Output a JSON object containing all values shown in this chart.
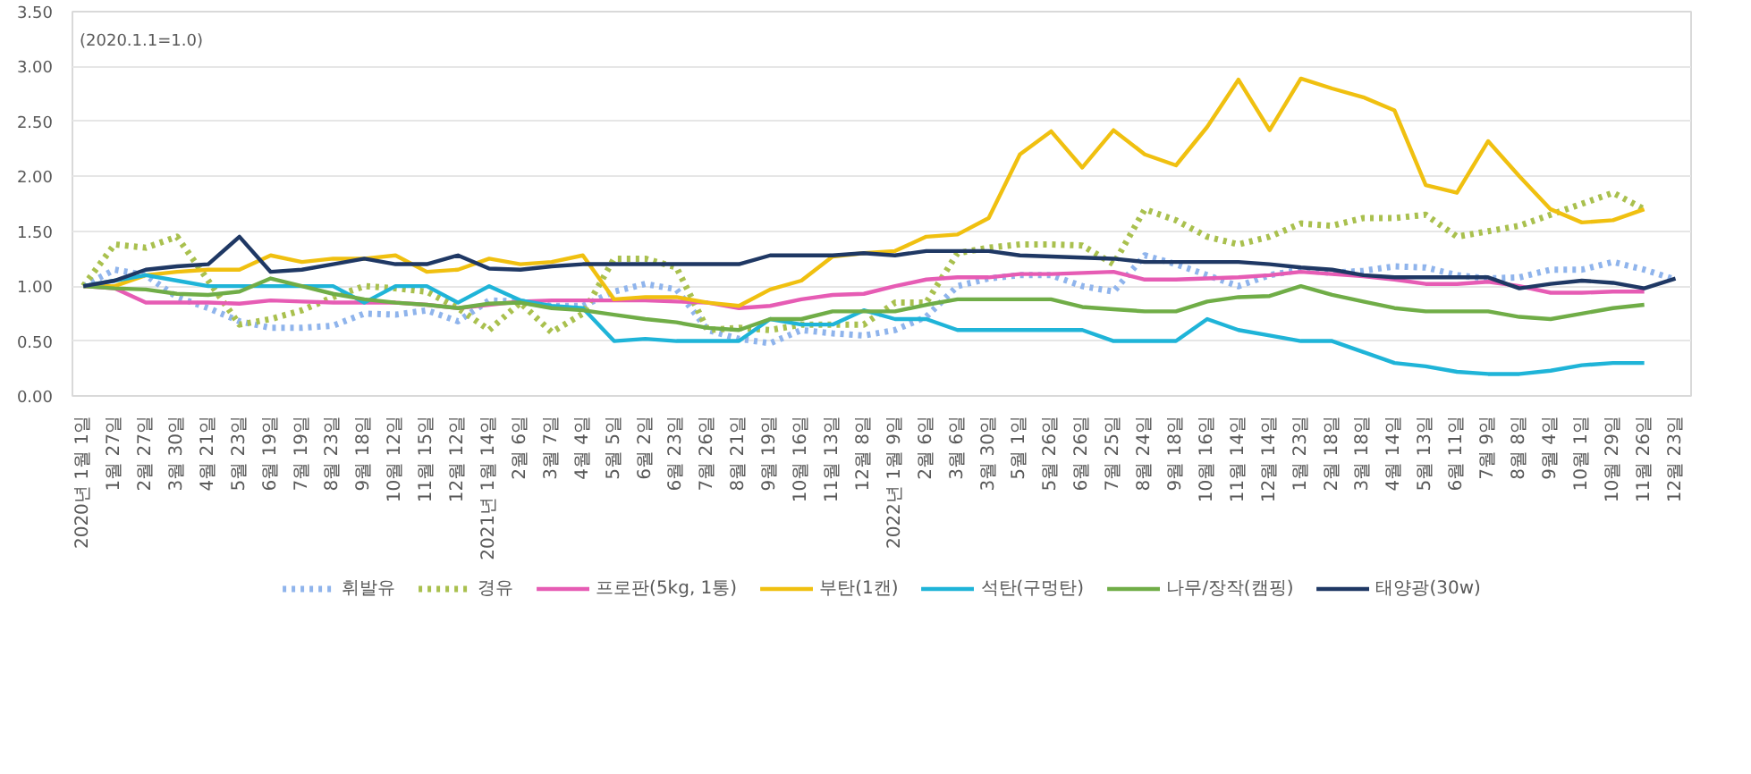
{
  "chart_data": {
    "type": "line",
    "annotations": [
      "(2020.1.1=1.0)"
    ],
    "ylim": [
      0,
      3.5
    ],
    "yticks": [
      {
        "value": 0,
        "label": "0.00"
      },
      {
        "value": 0.5,
        "label": "0.50"
      },
      {
        "value": 1,
        "label": "1.00"
      },
      {
        "value": 1.5,
        "label": "1.50"
      },
      {
        "value": 2,
        "label": "2.00"
      },
      {
        "value": 2.5,
        "label": "2.50"
      },
      {
        "value": 3,
        "label": "3.00"
      },
      {
        "value": 3.5,
        "label": "3.50"
      }
    ],
    "categories": [
      "2020년 1월 1일",
      "1월 27일",
      "2월 27일",
      "3월 30일",
      "4월 21일",
      "5월 23일",
      "6월 19일",
      "7월 19일",
      "8월 23일",
      "9월 18일",
      "10월 12일",
      "11월 15일",
      "12월 12일",
      "2021년 1월 14일",
      "2월 6일",
      "3월 7일",
      "4월 4일",
      "5월 5일",
      "6월 2일",
      "6월 23일",
      "7월 26일",
      "8월 21일",
      "9월 19일",
      "10월 16일",
      "11월 13일",
      "12월 8일",
      "2022년 1월 9일",
      "2월 6일",
      "3월 6일",
      "3월 30일",
      "5월 1일",
      "5월 26일",
      "6월 26일",
      "7월 25일",
      "8월 24일",
      "9월 18일",
      "10월 16일",
      "11월 14일",
      "12월 14일",
      "1월 23일",
      "2월 18일",
      "3월 18일",
      "4월 14일",
      "5월 13일",
      "6월 11일",
      "7월 9일",
      "8월 8일",
      "9월 4일",
      "10월 1일",
      "10월 29일",
      "11월 26일",
      "12월 23일"
    ],
    "grid": "y",
    "legend": "bottom",
    "series": [
      {
        "name": "휘발유",
        "color": "#8fb4ec",
        "line_style": "dotted",
        "values": [
          1.0,
          1.15,
          1.1,
          0.9,
          0.8,
          0.68,
          0.62,
          0.62,
          0.64,
          0.75,
          0.74,
          0.78,
          0.68,
          0.87,
          0.86,
          0.82,
          0.82,
          0.95,
          1.02,
          0.97,
          0.6,
          0.52,
          0.48,
          0.6,
          0.57,
          0.55,
          0.6,
          0.72,
          1.0,
          1.07,
          1.1,
          1.1,
          1.0,
          0.95,
          1.28,
          1.2,
          1.1,
          1.0,
          1.1,
          1.15,
          1.12,
          1.14,
          1.18,
          1.17,
          1.1,
          1.07,
          1.08,
          1.15,
          1.15,
          1.22,
          1.15,
          1.06
        ]
      },
      {
        "name": "경유",
        "color": "#a9c04e",
        "line_style": "dotted",
        "values": [
          1.0,
          1.38,
          1.35,
          1.45,
          1.05,
          0.65,
          0.7,
          0.78,
          0.9,
          1.0,
          0.98,
          0.95,
          0.8,
          0.6,
          0.85,
          0.58,
          0.75,
          1.25,
          1.25,
          1.17,
          0.6,
          0.62,
          0.6,
          0.65,
          0.65,
          0.65,
          0.85,
          0.85,
          1.3,
          1.35,
          1.38,
          1.38,
          1.37,
          1.2,
          1.7,
          1.6,
          1.45,
          1.38,
          1.45,
          1.57,
          1.55,
          1.62,
          1.62,
          1.65,
          1.45,
          1.5,
          1.55,
          1.65,
          1.75,
          1.85,
          1.7,
          null
        ]
      },
      {
        "name": "프로판(5kg, 1통)",
        "color": "#e65cb4",
        "line_style": "solid",
        "values": [
          1.0,
          0.98,
          0.85,
          0.85,
          0.85,
          0.84,
          0.87,
          0.86,
          0.85,
          0.85,
          0.85,
          0.83,
          0.8,
          0.83,
          0.86,
          0.87,
          0.87,
          0.87,
          0.87,
          0.86,
          0.85,
          0.8,
          0.82,
          0.88,
          0.92,
          0.93,
          1.0,
          1.06,
          1.08,
          1.08,
          1.11,
          1.11,
          1.12,
          1.13,
          1.06,
          1.06,
          1.07,
          1.08,
          1.1,
          1.13,
          1.11,
          1.09,
          1.06,
          1.02,
          1.02,
          1.04,
          1.0,
          0.94,
          0.94,
          0.95,
          0.95,
          null
        ]
      },
      {
        "name": "부탄(1캔)",
        "color": "#f0c010",
        "line_style": "solid",
        "values": [
          1.0,
          1.0,
          1.1,
          1.13,
          1.15,
          1.15,
          1.28,
          1.22,
          1.25,
          1.25,
          1.28,
          1.13,
          1.15,
          1.25,
          1.2,
          1.22,
          1.28,
          0.88,
          0.9,
          0.9,
          0.85,
          0.82,
          0.97,
          1.05,
          1.27,
          1.3,
          1.32,
          1.45,
          1.47,
          1.62,
          2.2,
          2.41,
          2.08,
          2.42,
          2.2,
          2.1,
          2.45,
          2.88,
          2.42,
          2.89,
          2.8,
          2.72,
          2.6,
          1.92,
          1.85,
          2.32,
          2.0,
          1.7,
          1.58,
          1.6,
          1.7,
          null
        ]
      },
      {
        "name": "석탄(구멍탄)",
        "color": "#1fb4d8",
        "line_style": "solid",
        "values": [
          1.0,
          1.05,
          1.1,
          1.05,
          1.0,
          1.0,
          1.0,
          1.0,
          1.0,
          0.85,
          1.0,
          1.0,
          0.85,
          1.0,
          0.87,
          0.82,
          0.8,
          0.5,
          0.52,
          0.5,
          0.5,
          0.5,
          0.7,
          0.65,
          0.65,
          0.78,
          0.7,
          0.7,
          0.6,
          0.6,
          0.6,
          0.6,
          0.6,
          0.5,
          0.5,
          0.5,
          0.7,
          0.6,
          0.55,
          0.5,
          0.5,
          0.4,
          0.3,
          0.27,
          0.22,
          0.2,
          0.2,
          0.23,
          0.28,
          0.3,
          0.3,
          null
        ]
      },
      {
        "name": "나무/장작(캠핑)",
        "color": "#70ad47",
        "line_style": "solid",
        "values": [
          1.0,
          0.98,
          0.97,
          0.93,
          0.92,
          0.95,
          1.07,
          1.0,
          0.93,
          0.88,
          0.85,
          0.83,
          0.8,
          0.84,
          0.85,
          0.8,
          0.78,
          0.74,
          0.7,
          0.67,
          0.62,
          0.6,
          0.7,
          0.7,
          0.77,
          0.77,
          0.77,
          0.83,
          0.88,
          0.88,
          0.88,
          0.88,
          0.81,
          0.79,
          0.77,
          0.77,
          0.86,
          0.9,
          0.91,
          1.0,
          0.92,
          0.86,
          0.8,
          0.77,
          0.77,
          0.77,
          0.72,
          0.7,
          0.75,
          0.8,
          0.83,
          null
        ]
      },
      {
        "name": "태양광(30w)",
        "color": "#1f3864",
        "line_style": "solid",
        "values": [
          1.0,
          1.05,
          1.15,
          1.18,
          1.2,
          1.45,
          1.13,
          1.15,
          1.2,
          1.25,
          1.2,
          1.2,
          1.28,
          1.16,
          1.15,
          1.18,
          1.2,
          1.2,
          1.2,
          1.2,
          1.2,
          1.2,
          1.28,
          1.28,
          1.28,
          1.3,
          1.28,
          1.32,
          1.32,
          1.32,
          1.28,
          1.27,
          1.26,
          1.25,
          1.22,
          1.22,
          1.22,
          1.22,
          1.2,
          1.17,
          1.15,
          1.1,
          1.08,
          1.08,
          1.08,
          1.08,
          0.98,
          1.02,
          1.05,
          1.03,
          0.98,
          1.07
        ]
      }
    ]
  }
}
